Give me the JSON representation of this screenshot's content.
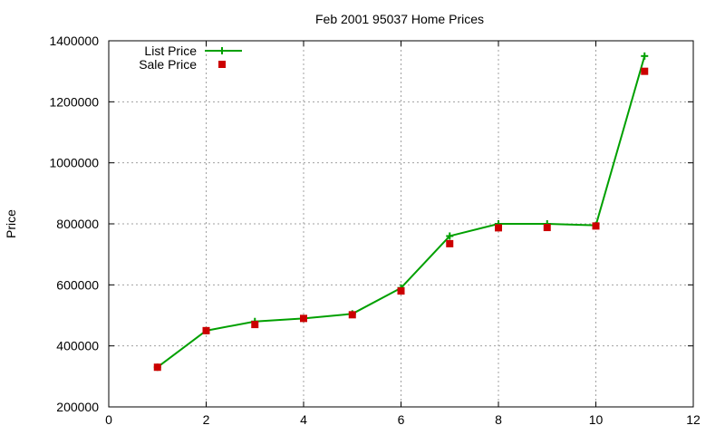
{
  "chart_data": {
    "type": "line",
    "title": "Feb 2001 95037 Home Prices",
    "xlabel": "",
    "ylabel": "Price",
    "xlim": [
      0,
      12
    ],
    "ylim": [
      200000,
      1400000
    ],
    "xticks": [
      0,
      2,
      4,
      6,
      8,
      10,
      12
    ],
    "yticks": [
      200000,
      400000,
      600000,
      800000,
      1000000,
      1200000,
      1400000
    ],
    "grid": true,
    "legend_position": "top-left",
    "series": [
      {
        "name": "List Price",
        "style": "lines+points",
        "marker": "plus",
        "color": "#00a000",
        "x": [
          1,
          2,
          3,
          4,
          5,
          6,
          7,
          8,
          9,
          10,
          11
        ],
        "values": [
          330000,
          450000,
          480000,
          490000,
          505000,
          590000,
          760000,
          800000,
          800000,
          795000,
          1350000
        ]
      },
      {
        "name": "Sale Price",
        "style": "points",
        "marker": "square",
        "color": "#cc0000",
        "x": [
          1,
          2,
          3,
          4,
          5,
          6,
          7,
          8,
          9,
          10,
          11
        ],
        "values": [
          330000,
          450000,
          470000,
          490000,
          502000,
          580000,
          735000,
          787000,
          788000,
          793000,
          1300000
        ]
      }
    ]
  }
}
